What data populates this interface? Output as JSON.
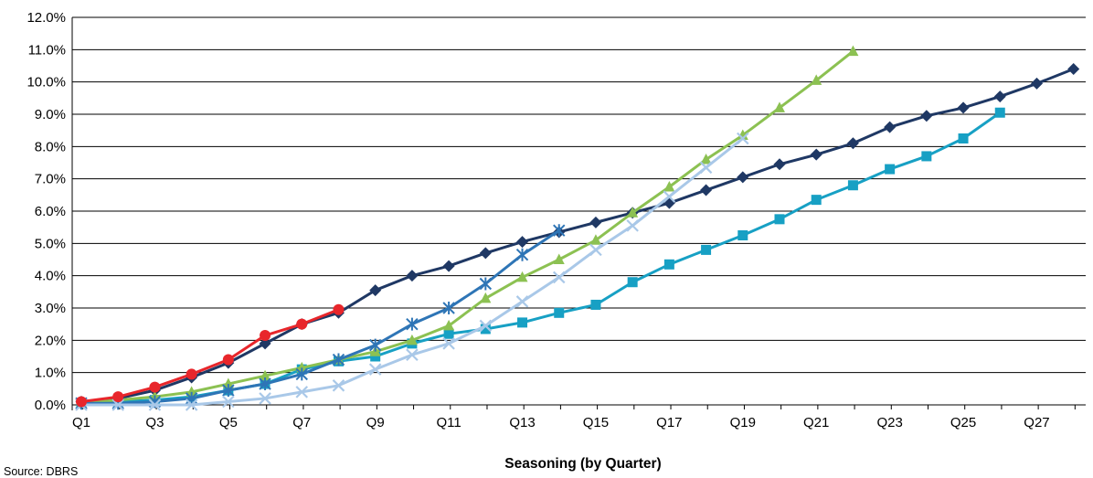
{
  "chart_data": {
    "type": "line",
    "title": "",
    "xlabel": "Seasoning (by Quarter)",
    "ylabel": "",
    "source": "Source: DBRS",
    "ylim": [
      0,
      12
    ],
    "y_ticks": [
      "0.0%",
      "1.0%",
      "2.0%",
      "3.0%",
      "4.0%",
      "5.0%",
      "6.0%",
      "7.0%",
      "8.0%",
      "9.0%",
      "10.0%",
      "11.0%",
      "12.0%"
    ],
    "x_ticks": [
      "Q1",
      "Q3",
      "Q5",
      "Q7",
      "Q9",
      "Q11",
      "Q13",
      "Q15",
      "Q17",
      "Q19",
      "Q21",
      "Q23",
      "Q25",
      "Q27"
    ],
    "x_range": [
      1,
      28
    ],
    "grid": "horizontal",
    "legend": "none",
    "series": [
      {
        "color": "#1f3864",
        "marker": "diamond",
        "values": [
          0.1,
          0.2,
          0.45,
          0.85,
          1.3,
          1.9,
          2.5,
          2.85,
          3.55,
          4.0,
          4.3,
          4.7,
          5.05,
          5.35,
          5.65,
          5.95,
          6.25,
          6.65,
          7.05,
          7.45,
          7.75,
          8.1,
          8.6,
          8.95,
          9.2,
          9.55,
          9.95,
          10.4
        ]
      },
      {
        "color": "#17a0c4",
        "marker": "square",
        "values": [
          0.05,
          0.1,
          0.15,
          0.25,
          0.45,
          0.65,
          1.1,
          1.35,
          1.5,
          1.9,
          2.2,
          2.35,
          2.55,
          2.85,
          3.1,
          3.8,
          4.35,
          4.8,
          5.25,
          5.75,
          6.35,
          6.8,
          7.3,
          7.7,
          8.25,
          9.05
        ]
      },
      {
        "color": "#8cc152",
        "marker": "triangle",
        "values": [
          0.05,
          0.15,
          0.25,
          0.4,
          0.65,
          0.9,
          1.15,
          1.4,
          1.65,
          2.0,
          2.45,
          3.3,
          3.95,
          4.5,
          5.1,
          5.95,
          6.75,
          7.6,
          8.35,
          9.2,
          10.05,
          10.95
        ]
      },
      {
        "color": "#2e75b6",
        "marker": "star",
        "values": [
          0.05,
          0.05,
          0.1,
          0.2,
          0.45,
          0.65,
          0.95,
          1.4,
          1.85,
          2.5,
          3.0,
          3.75,
          4.65,
          5.4
        ]
      },
      {
        "color": "#a9c8e8",
        "marker": "x",
        "values": [
          0.0,
          0.0,
          0.0,
          0.0,
          0.1,
          0.2,
          0.4,
          0.6,
          1.1,
          1.55,
          1.9,
          2.45,
          3.2,
          3.95,
          4.8,
          5.55,
          6.45,
          7.35,
          8.25
        ]
      },
      {
        "color": "#e8262b",
        "marker": "circle",
        "values": [
          0.1,
          0.25,
          0.55,
          0.95,
          1.4,
          2.15,
          2.5,
          2.95
        ]
      }
    ]
  }
}
